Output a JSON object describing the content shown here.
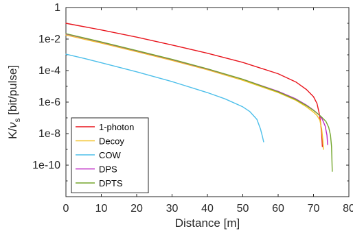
{
  "chart_data": {
    "type": "line",
    "title": "",
    "xlabel": "Distance [m]",
    "ylabel": "K/ν_s [bit/pulse]",
    "ylabel_parts": {
      "main": "K/",
      "greek": "ν",
      "sub": "s",
      "unit": " [bit/pulse]"
    },
    "x_scale": "linear",
    "y_scale": "log",
    "xlim": [
      0,
      80
    ],
    "ylim": [
      1e-12,
      1
    ],
    "x_ticks": [
      0,
      10,
      20,
      30,
      40,
      50,
      60,
      70,
      80
    ],
    "x_tick_labels": [
      "0",
      "10",
      "20",
      "30",
      "40",
      "50",
      "60",
      "70",
      "80"
    ],
    "y_ticks": [
      1e-10,
      1e-08,
      1e-06,
      0.0001,
      0.01,
      1
    ],
    "y_tick_labels": [
      "1e-10",
      "1e-8",
      "1e-6",
      "1e-4",
      "1e-2",
      "1"
    ],
    "grid": false,
    "legend_position": "bottom-left",
    "series": [
      {
        "name": "1-photon",
        "color": "#e8141c",
        "points": [
          [
            0,
            0.1
          ],
          [
            10,
            0.038
          ],
          [
            20,
            0.0132
          ],
          [
            30,
            0.0042
          ],
          [
            40,
            0.00126
          ],
          [
            50,
            0.00033
          ],
          [
            60,
            6.3e-05
          ],
          [
            65,
            1.9e-05
          ],
          [
            68,
            6.3e-06
          ],
          [
            70,
            2.2e-06
          ],
          [
            71,
            8e-07
          ],
          [
            71.6,
            2e-07
          ],
          [
            72.0,
            5e-08
          ],
          [
            72.3,
            1e-08
          ],
          [
            72.5,
            1.5e-09
          ]
        ]
      },
      {
        "name": "Decoy",
        "color": "#f2c228",
        "points": [
          [
            0,
            0.018
          ],
          [
            10,
            0.0055
          ],
          [
            20,
            0.00158
          ],
          [
            30,
            0.00044
          ],
          [
            40,
            0.000112
          ],
          [
            50,
            2.4e-05
          ],
          [
            60,
            4e-06
          ],
          [
            65,
            1.3e-06
          ],
          [
            68,
            5e-07
          ],
          [
            70,
            2.3e-07
          ],
          [
            71,
            1.4e-07
          ],
          [
            71.8,
            7e-08
          ],
          [
            72.3,
            2e-08
          ],
          [
            72.6,
            5e-09
          ],
          [
            72.8,
            1e-09
          ]
        ]
      },
      {
        "name": "COW",
        "color": "#4dbfea",
        "points": [
          [
            0,
            0.0011
          ],
          [
            5,
            0.0006
          ],
          [
            10,
            0.000316
          ],
          [
            20,
            8.3e-05
          ],
          [
            30,
            2e-05
          ],
          [
            40,
            4e-06
          ],
          [
            45,
            1.6e-06
          ],
          [
            50,
            5e-07
          ],
          [
            52,
            2.5e-07
          ],
          [
            54,
            8e-08
          ],
          [
            55,
            2e-08
          ],
          [
            55.6,
            6e-09
          ],
          [
            55.9,
            3e-09
          ]
        ]
      },
      {
        "name": "DPS",
        "color": "#be27c4",
        "points": [
          [
            0,
            0.021
          ],
          [
            10,
            0.0063
          ],
          [
            20,
            0.00178
          ],
          [
            30,
            0.0005
          ],
          [
            40,
            0.000126
          ],
          [
            50,
            2.8e-05
          ],
          [
            60,
            4.8e-06
          ],
          [
            65,
            1.6e-06
          ],
          [
            68,
            6.5e-07
          ],
          [
            70,
            3.1e-07
          ],
          [
            71.5,
            1.6e-07
          ],
          [
            72.5,
            8e-08
          ],
          [
            73.3,
            3e-08
          ],
          [
            73.8,
            8e-09
          ],
          [
            74.0,
            2e-09
          ]
        ]
      },
      {
        "name": "DPTS",
        "color": "#73a62c",
        "points": [
          [
            0,
            0.022
          ],
          [
            10,
            0.0066
          ],
          [
            20,
            0.00186
          ],
          [
            30,
            0.00052
          ],
          [
            40,
            0.00013
          ],
          [
            50,
            2.8e-05
          ],
          [
            60,
            4.5e-06
          ],
          [
            65,
            1.45e-06
          ],
          [
            68,
            6e-07
          ],
          [
            70,
            3e-07
          ],
          [
            72,
            1.3e-07
          ],
          [
            73.5,
            6e-08
          ],
          [
            74.3,
            2.5e-08
          ],
          [
            74.8,
            8e-09
          ],
          [
            75.1,
            1.5e-09
          ],
          [
            75.3,
            4e-11
          ]
        ]
      }
    ]
  }
}
